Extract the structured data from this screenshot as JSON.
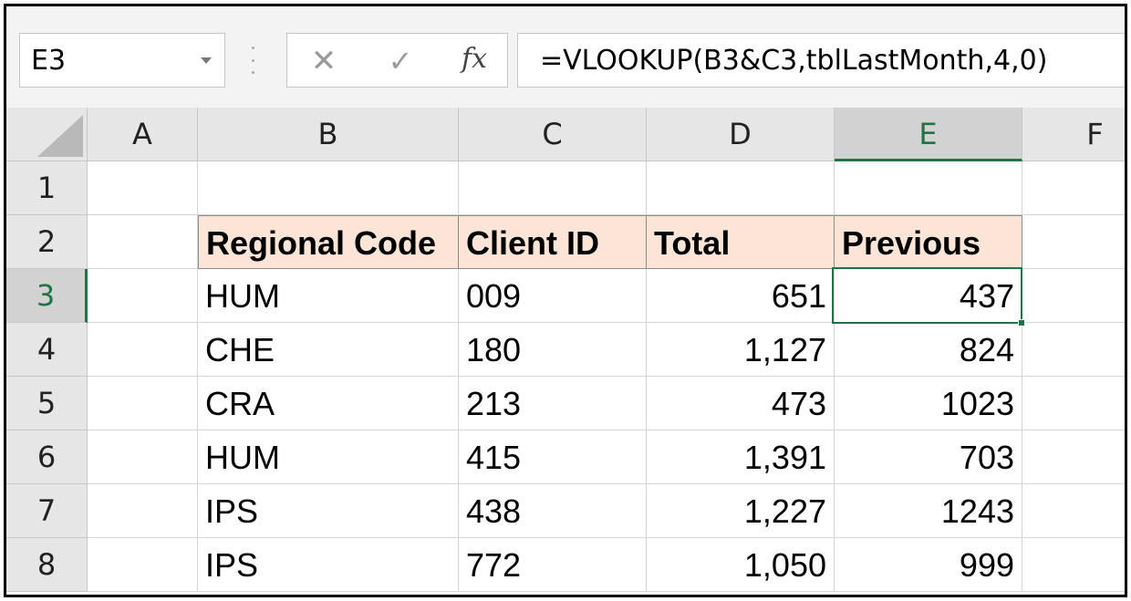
{
  "formula_bar": {
    "name_box": "E3",
    "cancel_icon": "cancel-x-icon",
    "enter_icon": "enter-check-icon",
    "fx_label": "fx",
    "formula": "=VLOOKUP(B3&C3,tblLastMonth,4,0)"
  },
  "columns": [
    "A",
    "B",
    "C",
    "D",
    "E",
    "F"
  ],
  "active_column": "E",
  "rows": [
    "1",
    "2",
    "3",
    "4",
    "5",
    "6",
    "7",
    "8"
  ],
  "active_row": "3",
  "table": {
    "headers": [
      "Regional Code",
      "Client ID",
      "Total",
      "Previous"
    ],
    "rows": [
      [
        "HUM",
        "009",
        "651",
        "437"
      ],
      [
        "CHE",
        "180",
        "1,127",
        "824"
      ],
      [
        "CRA",
        "213",
        "473",
        "1023"
      ],
      [
        "HUM",
        "415",
        "1,391",
        "703"
      ],
      [
        "IPS",
        "438",
        "1,227",
        "1243"
      ],
      [
        "IPS",
        "772",
        "1,050",
        "999"
      ]
    ],
    "header_fill": "#fce4d6"
  },
  "colors": {
    "accent_green": "#217346",
    "header_bg": "#e6e6e6",
    "gridline": "#d4d4d4"
  }
}
